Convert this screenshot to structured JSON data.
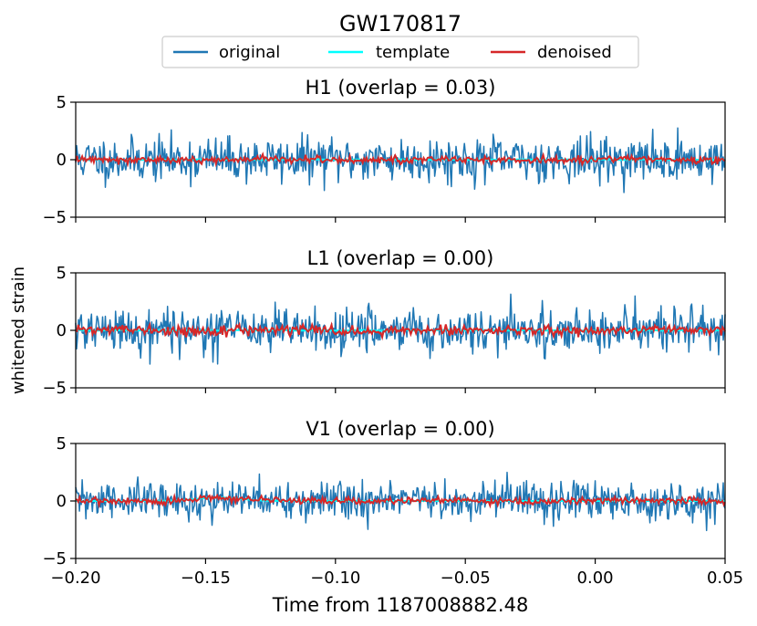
{
  "chart_data": {
    "type": "line",
    "title": "GW170817",
    "xlabel": "Time from 1187008882.48",
    "ylabel": "whitened strain",
    "xlim": [
      -0.2,
      0.05
    ],
    "x_ticks": [
      "−0.20",
      "−0.15",
      "−0.10",
      "−0.05",
      "0.00",
      "0.05"
    ],
    "x_tick_values": [
      -0.2,
      -0.15,
      -0.1,
      -0.05,
      0.0,
      0.05
    ],
    "legend": {
      "placement": "top-center",
      "entries": [
        {
          "name": "original",
          "color": "#1f77b4"
        },
        {
          "name": "template",
          "color": "#00ffff"
        },
        {
          "name": "denoised",
          "color": "#d62728"
        }
      ]
    },
    "subplots": [
      {
        "detector": "H1",
        "title": "H1 (overlap = 0.03)",
        "overlap": 0.03,
        "ylim": [
          -5,
          5
        ],
        "y_ticks": [
          "5",
          "0",
          "−5"
        ],
        "y_tick_values": [
          5,
          0,
          -5
        ],
        "series": {
          "original": {
            "std": 0.95,
            "seed": 11
          },
          "template": {
            "type": "flat_chirp",
            "amplitude": 0.05
          },
          "denoised": {
            "amplitude": 0.15,
            "seed": 12
          }
        }
      },
      {
        "detector": "L1",
        "title": "L1 (overlap = 0.00)",
        "overlap": 0.0,
        "ylim": [
          -5,
          5
        ],
        "y_ticks": [
          "5",
          "0",
          "−5"
        ],
        "y_tick_values": [
          5,
          0,
          -5
        ],
        "series": {
          "original": {
            "std": 0.95,
            "seed": 21
          },
          "template": {
            "type": "flat_chirp",
            "amplitude": 0.05
          },
          "denoised": {
            "amplitude": 0.2,
            "seed": 22
          }
        }
      },
      {
        "detector": "V1",
        "title": "V1 (overlap = 0.00)",
        "overlap": 0.0,
        "ylim": [
          -5,
          5
        ],
        "y_ticks": [
          "5",
          "0",
          "−5"
        ],
        "y_tick_values": [
          5,
          0,
          -5
        ],
        "series": {
          "original": {
            "std": 0.85,
            "seed": 31
          },
          "template": {
            "type": "bump",
            "amplitude": 0.3,
            "center": -0.145,
            "width": 0.012
          },
          "denoised": {
            "amplitude": 0.15,
            "seed": 32
          }
        }
      }
    ]
  }
}
